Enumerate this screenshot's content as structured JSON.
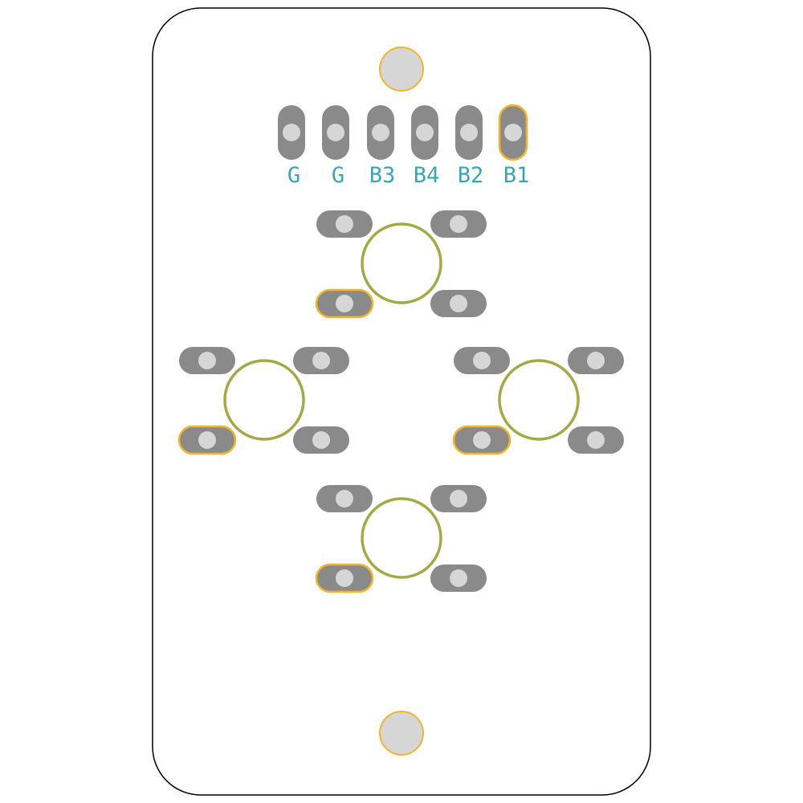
{
  "board": {
    "outline_color": "#000000",
    "background": "#ffffff"
  },
  "colors": {
    "pad": "#8a8a8a",
    "drill": "#d6d6d6",
    "pin1_highlight": "#f5b52a",
    "silkscreen": "#3aa6b4",
    "switch_outline": "#a3aa45",
    "mounting_hole_fill": "#d6d6d6",
    "mounting_hole_ring": "#f5b52a"
  },
  "header": {
    "pins": [
      {
        "label": "G",
        "pin1": false
      },
      {
        "label": "G",
        "pin1": false
      },
      {
        "label": "B3",
        "pin1": false
      },
      {
        "label": "B4",
        "pin1": false
      },
      {
        "label": "B2",
        "pin1": false
      },
      {
        "label": "B1",
        "pin1": true
      }
    ]
  },
  "switches": [
    {
      "name": "switch-top"
    },
    {
      "name": "switch-left"
    },
    {
      "name": "switch-right"
    },
    {
      "name": "switch-bottom"
    }
  ],
  "mounting_holes": [
    {
      "name": "top"
    },
    {
      "name": "bottom"
    }
  ]
}
